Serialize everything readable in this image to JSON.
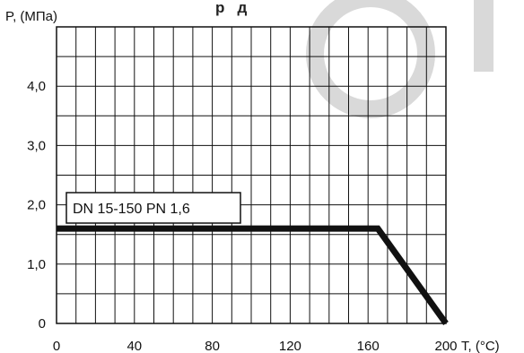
{
  "watermark": {
    "color": "#d9d9d9"
  },
  "chart_data": {
    "type": "line",
    "title_fragment": "р   д",
    "xlabel": "T, (°C)",
    "ylabel": "P, (МПа)",
    "xlim": [
      0,
      200
    ],
    "ylim": [
      0,
      5
    ],
    "x_ticks": [
      0,
      40,
      80,
      120,
      160,
      200
    ],
    "x_tick_labels": [
      "0",
      "40",
      "80",
      "120",
      "160",
      "200"
    ],
    "y_ticks": [
      0,
      1,
      2,
      3,
      4
    ],
    "y_tick_labels": [
      "0",
      "1,0",
      "2,0",
      "3,0",
      "4,0"
    ],
    "x_minor_step": 10,
    "y_minor_step": 0.5,
    "grid": true,
    "series": [
      {
        "name": "DN 15-150 PN 1,6",
        "color": "#111111",
        "x": [
          0,
          165,
          200
        ],
        "y": [
          1.6,
          1.6,
          0
        ]
      }
    ]
  }
}
